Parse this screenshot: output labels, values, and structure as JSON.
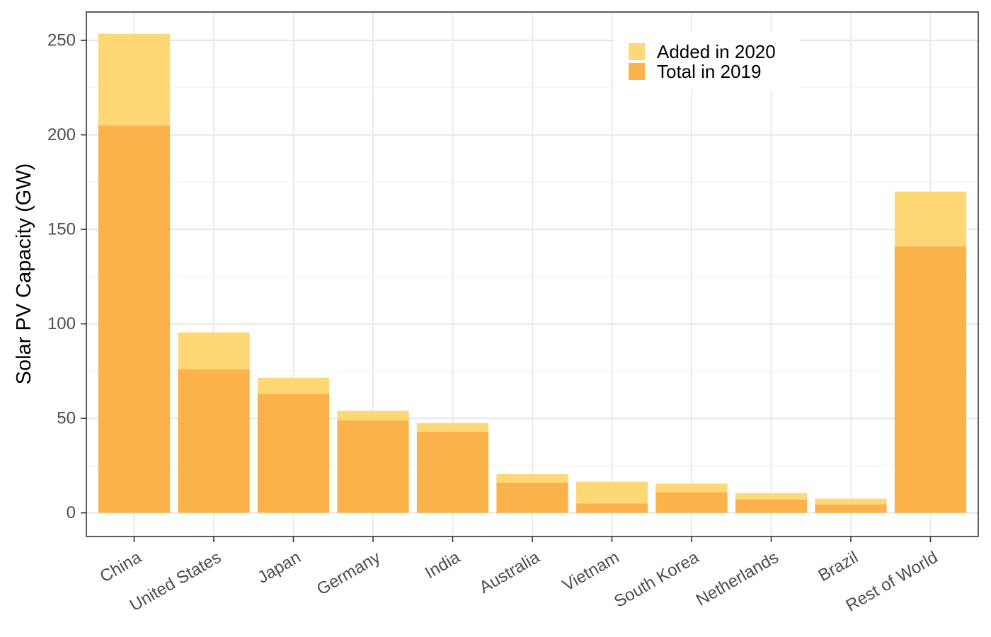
{
  "chart_data": {
    "type": "bar",
    "stacked": true,
    "categories": [
      "China",
      "United States",
      "Japan",
      "Germany",
      "India",
      "Australia",
      "Vietnam",
      "South Korea",
      "Netherlands",
      "Brazil",
      "Rest of World"
    ],
    "series": [
      {
        "name": "Total in 2019",
        "color": "#FBB24A",
        "values": [
          205,
          76,
          63,
          49,
          43,
          16,
          5,
          11,
          7,
          4.5,
          141
        ]
      },
      {
        "name": "Added in 2020",
        "color": "#FDD874",
        "values": [
          48.5,
          19.5,
          8.5,
          5,
          4.5,
          4.5,
          11.5,
          4.5,
          3.5,
          3,
          29
        ]
      }
    ],
    "legend_order": [
      "Added in 2020",
      "Total in 2019"
    ],
    "legend_position": "top-right",
    "title": "",
    "xlabel": "",
    "ylabel": "Solar PV Capacity (GW)",
    "ylim": [
      -12.5,
      265
    ],
    "yticks": [
      0,
      50,
      100,
      150,
      200,
      250
    ],
    "grid": true,
    "panel_border": true
  }
}
